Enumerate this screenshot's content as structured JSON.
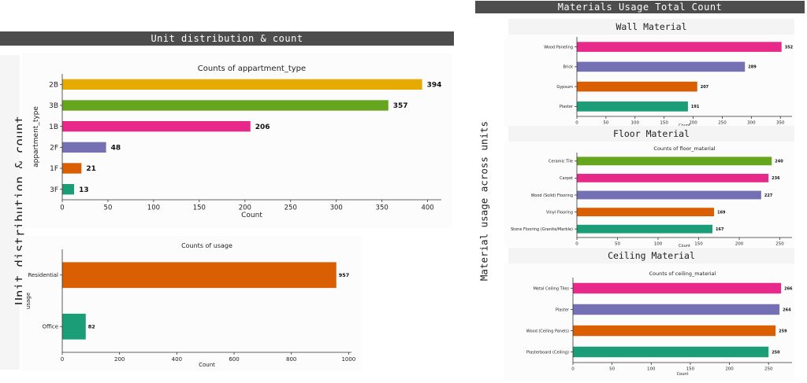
{
  "left_header": "Unit distribution & count",
  "left_side_label": "Unit distribution & count",
  "right_header": "Materials Usage Total Count",
  "right_side_label": "Material usage across units",
  "sections": {
    "wall": "Wall Material",
    "floor": "Floor Material",
    "ceiling": "Ceiling Material"
  },
  "colors": {
    "yellow": "#e6ab02",
    "green": "#66a61e",
    "pink": "#e7298a",
    "purple": "#7570b3",
    "orange": "#d95f02",
    "teal": "#1b9e77"
  },
  "chart_data": [
    {
      "id": "apt",
      "type": "bar",
      "orientation": "horizontal",
      "title": "Counts of appartment_type",
      "xlabel": "Count",
      "ylabel": "appartment_type",
      "categories": [
        "2B",
        "3B",
        "1B",
        "2F",
        "1F",
        "3F"
      ],
      "values": [
        394,
        357,
        206,
        48,
        21,
        13
      ],
      "colors": [
        "#e6ab02",
        "#66a61e",
        "#e7298a",
        "#7570b3",
        "#d95f02",
        "#1b9e77"
      ],
      "xlim": [
        0,
        415
      ],
      "xticks": [
        0,
        50,
        100,
        150,
        200,
        250,
        300,
        350,
        400
      ]
    },
    {
      "id": "usage",
      "type": "bar",
      "orientation": "horizontal",
      "title": "Counts of usage",
      "xlabel": "Count",
      "ylabel": "usage",
      "categories": [
        "Residential",
        "Office"
      ],
      "values": [
        957,
        82
      ],
      "colors": [
        "#d95f02",
        "#1b9e77"
      ],
      "xlim": [
        0,
        1010
      ],
      "xticks": [
        0,
        200,
        400,
        600,
        800,
        1000
      ]
    },
    {
      "id": "wall",
      "type": "bar",
      "orientation": "horizontal",
      "title": "",
      "xlabel": "Count",
      "ylabel": "",
      "categories": [
        "Wood Paneling",
        "Brick",
        "Gypsum",
        "Plaster"
      ],
      "values": [
        352,
        289,
        207,
        191
      ],
      "colors": [
        "#e7298a",
        "#7570b3",
        "#d95f02",
        "#1b9e77"
      ],
      "xlim": [
        0,
        370
      ],
      "xticks": [
        0,
        50,
        100,
        150,
        200,
        250,
        300,
        350
      ]
    },
    {
      "id": "floor",
      "type": "bar",
      "orientation": "horizontal",
      "title": "Counts of floor_material",
      "xlabel": "Count",
      "ylabel": "",
      "categories": [
        "Ceramic Tile",
        "Carpet",
        "Wood (Solid) Flooring",
        "Vinyl Flooring",
        "Stone Flooring (Granite/Marble)"
      ],
      "values": [
        240,
        236,
        227,
        169,
        167
      ],
      "colors": [
        "#66a61e",
        "#e7298a",
        "#7570b3",
        "#d95f02",
        "#1b9e77"
      ],
      "xlim": [
        0,
        265
      ],
      "xticks": [
        0,
        50,
        100,
        150,
        200,
        250
      ]
    },
    {
      "id": "ceiling",
      "type": "bar",
      "orientation": "horizontal",
      "title": "Counts of ceiling_material",
      "xlabel": "Count",
      "ylabel": "",
      "categories": [
        "Metal Ceiling Tiles",
        "Plaster",
        "Wood (Ceiling Panels)",
        "Plasterboard (Ceiling)"
      ],
      "values": [
        266,
        264,
        259,
        250
      ],
      "colors": [
        "#e7298a",
        "#7570b3",
        "#d95f02",
        "#1b9e77"
      ],
      "xlim": [
        0,
        280
      ],
      "xticks": [
        0,
        50,
        100,
        150,
        200,
        250
      ]
    }
  ]
}
